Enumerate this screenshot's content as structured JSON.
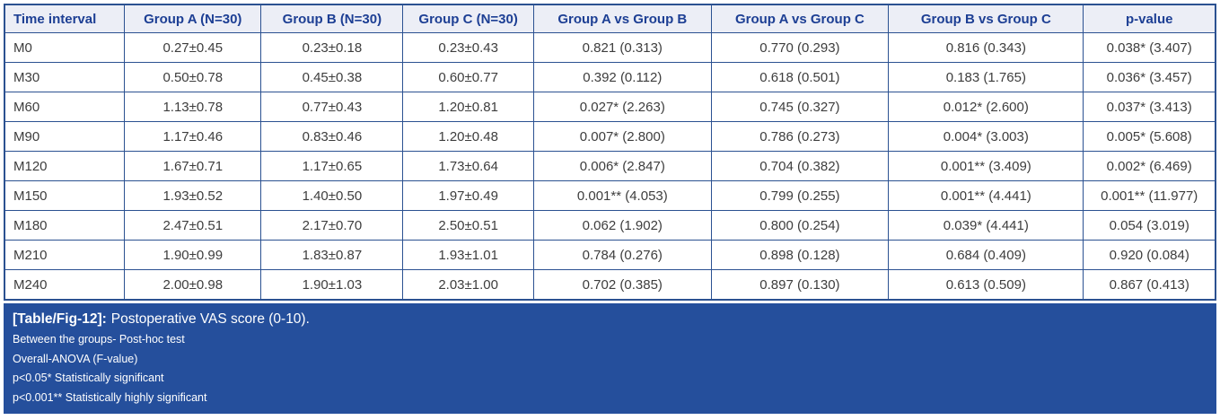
{
  "figure": {
    "table": {
      "columns": [
        "Time interval",
        "Group A (N=30)",
        "Group B (N=30)",
        "Group C (N=30)",
        "Group A vs Group B",
        "Group A vs Group C",
        "Group B vs Group C",
        "p-value"
      ],
      "rows": [
        [
          "M0",
          "0.27±0.45",
          "0.23±0.18",
          "0.23±0.43",
          "0.821 (0.313)",
          "0.770 (0.293)",
          "0.816 (0.343)",
          "0.038* (3.407)"
        ],
        [
          "M30",
          "0.50±0.78",
          "0.45±0.38",
          "0.60±0.77",
          "0.392 (0.112)",
          "0.618 (0.501)",
          "0.183 (1.765)",
          "0.036* (3.457)"
        ],
        [
          "M60",
          "1.13±0.78",
          "0.77±0.43",
          "1.20±0.81",
          "0.027* (2.263)",
          "0.745 (0.327)",
          "0.012* (2.600)",
          "0.037* (3.413)"
        ],
        [
          "M90",
          "1.17±0.46",
          "0.83±0.46",
          "1.20±0.48",
          "0.007* (2.800)",
          "0.786 (0.273)",
          "0.004* (3.003)",
          "0.005* (5.608)"
        ],
        [
          "M120",
          "1.67±0.71",
          "1.17±0.65",
          "1.73±0.64",
          "0.006* (2.847)",
          "0.704 (0.382)",
          "0.001** (3.409)",
          "0.002* (6.469)"
        ],
        [
          "M150",
          "1.93±0.52",
          "1.40±0.50",
          "1.97±0.49",
          "0.001** (4.053)",
          "0.799 (0.255)",
          "0.001** (4.441)",
          "0.001** (11.977)"
        ],
        [
          "M180",
          "2.47±0.51",
          "2.17±0.70",
          "2.50±0.51",
          "0.062 (1.902)",
          "0.800 (0.254)",
          "0.039* (4.441)",
          "0.054 (3.019)"
        ],
        [
          "M210",
          "1.90±0.99",
          "1.83±0.87",
          "1.93±1.01",
          "0.784 (0.276)",
          "0.898 (0.128)",
          "0.684 (0.409)",
          "0.920 (0.084)"
        ],
        [
          "M240",
          "2.00±0.98",
          "1.90±1.03",
          "2.03±1.00",
          "0.702 (0.385)",
          "0.897 (0.130)",
          "0.613 (0.509)",
          "0.867 (0.413)"
        ]
      ]
    },
    "caption": {
      "label": "[Table/Fig-12]:",
      "title": "Postoperative VAS score (0-10).",
      "notes": [
        "Between the groups- Post-hoc test",
        "Overall-ANOVA (F-value)",
        "p<0.05* Statistically significant",
        "p<0.001** Statistically highly significant"
      ]
    },
    "colors": {
      "header_bg": "#eceef6",
      "header_text": "#1d3f94",
      "border": "#2b5191",
      "body_text": "#3d3d3d",
      "caption_bg": "#254f9c",
      "caption_text": "#ffffff"
    }
  }
}
